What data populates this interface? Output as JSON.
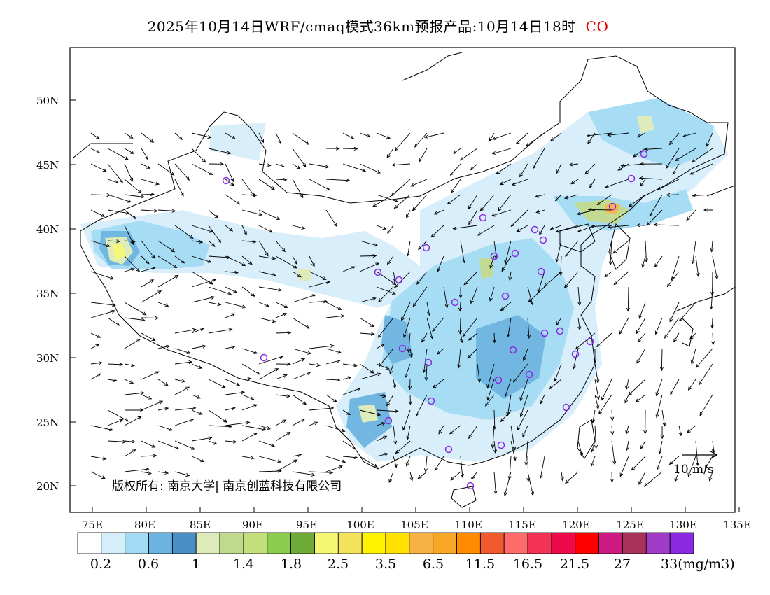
{
  "title": {
    "main": "2025年10月14日WRF/cmaq模式36km预报产品:10月14日18时",
    "species": "CO",
    "species_color": "#e00000"
  },
  "lat_labels": [
    "50N",
    "45N",
    "40N",
    "35N",
    "30N",
    "25N",
    "20N"
  ],
  "lon_labels": [
    "75E",
    "80E",
    "85E",
    "90E",
    "95E",
    "100E",
    "105E",
    "110E",
    "115E",
    "120E",
    "125E",
    "130E",
    "135E"
  ],
  "wind_reference": "10 m/s",
  "copyright": "版权所有: 南京大学| 南京创蓝科技有限公司",
  "colorbar": {
    "colors": [
      "#ffffff",
      "#d6eefa",
      "#a3dbf5",
      "#6bb4e0",
      "#4a8ec6",
      "#dcebb7",
      "#bfd98d",
      "#c3e07d",
      "#8ccc4c",
      "#6eaa36",
      "#f4f774",
      "#f2e35a",
      "#fff200",
      "#ffe000",
      "#f7b247",
      "#f9a825",
      "#ff8c00",
      "#f05a2c",
      "#ff6b6b",
      "#f23355",
      "#ee0a4a",
      "#ff0000",
      "#cc1a80",
      "#a8325a",
      "#a03cc8",
      "#8a2be2"
    ],
    "labels": [
      "0.2",
      "0.6",
      "1",
      "1.4",
      "1.8",
      "2.5",
      "3.5",
      "6.5",
      "11.5",
      "16.5",
      "21.5",
      "27",
      "33"
    ],
    "units": "(mg/m3)"
  },
  "colors": {
    "station_marker": "#8a2be2",
    "vector": "#000000",
    "boundary": "#000000"
  },
  "stations_count_note": "",
  "map_frame": {
    "lon_range": [
      73,
      135
    ],
    "lat_range": [
      18,
      54
    ]
  }
}
